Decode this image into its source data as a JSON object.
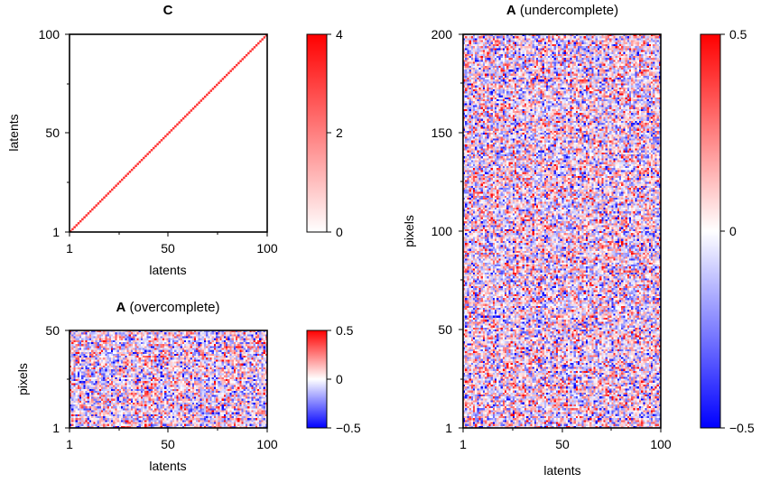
{
  "chart_data": [
    {
      "id": "C",
      "type": "heatmap",
      "title_bold": "C",
      "title_rest": "",
      "xlabel": "latents",
      "ylabel": "latents",
      "xlim": [
        1,
        100
      ],
      "ylim": [
        1,
        100
      ],
      "xticks": [
        "1",
        "50",
        "100"
      ],
      "yticks": [
        "1",
        "50",
        "100"
      ],
      "color_range": [
        0,
        4
      ],
      "colorbar_ticks": [
        "0",
        "2",
        "4"
      ],
      "colormap": "white-red",
      "description_values": "diagonal matrix, diagonal value approx 3.2, off-diagonal 0",
      "diag_value": 3.2
    },
    {
      "id": "A_over",
      "type": "heatmap",
      "title_bold": "A",
      "title_rest": " (overcomplete)",
      "xlabel": "latents",
      "ylabel": "pixels",
      "xlim": [
        1,
        100
      ],
      "ylim": [
        1,
        50
      ],
      "xticks": [
        "1",
        "50",
        "100"
      ],
      "yticks": [
        "1",
        "50"
      ],
      "color_range": [
        -0.5,
        0.5
      ],
      "colorbar_ticks": [
        "−0.5",
        "0",
        "0.5"
      ],
      "colormap": "blue-white-red",
      "rows": 50,
      "cols": 100
    },
    {
      "id": "A_under",
      "type": "heatmap",
      "title_bold": "A",
      "title_rest": " (undercomplete)",
      "xlabel": "latents",
      "ylabel": "pixels",
      "xlim": [
        1,
        100
      ],
      "ylim": [
        1,
        200
      ],
      "xticks": [
        "1",
        "50",
        "100"
      ],
      "yticks": [
        "1",
        "50",
        "100",
        "150",
        "200"
      ],
      "color_range": [
        -0.5,
        0.5
      ],
      "colorbar_ticks": [
        "−0.5",
        "0",
        "0.5"
      ],
      "colormap": "blue-white-red",
      "rows": 200,
      "cols": 100
    }
  ],
  "colors": {
    "red": "#ff0000",
    "blue": "#0000ff",
    "white": "#ffffff"
  }
}
